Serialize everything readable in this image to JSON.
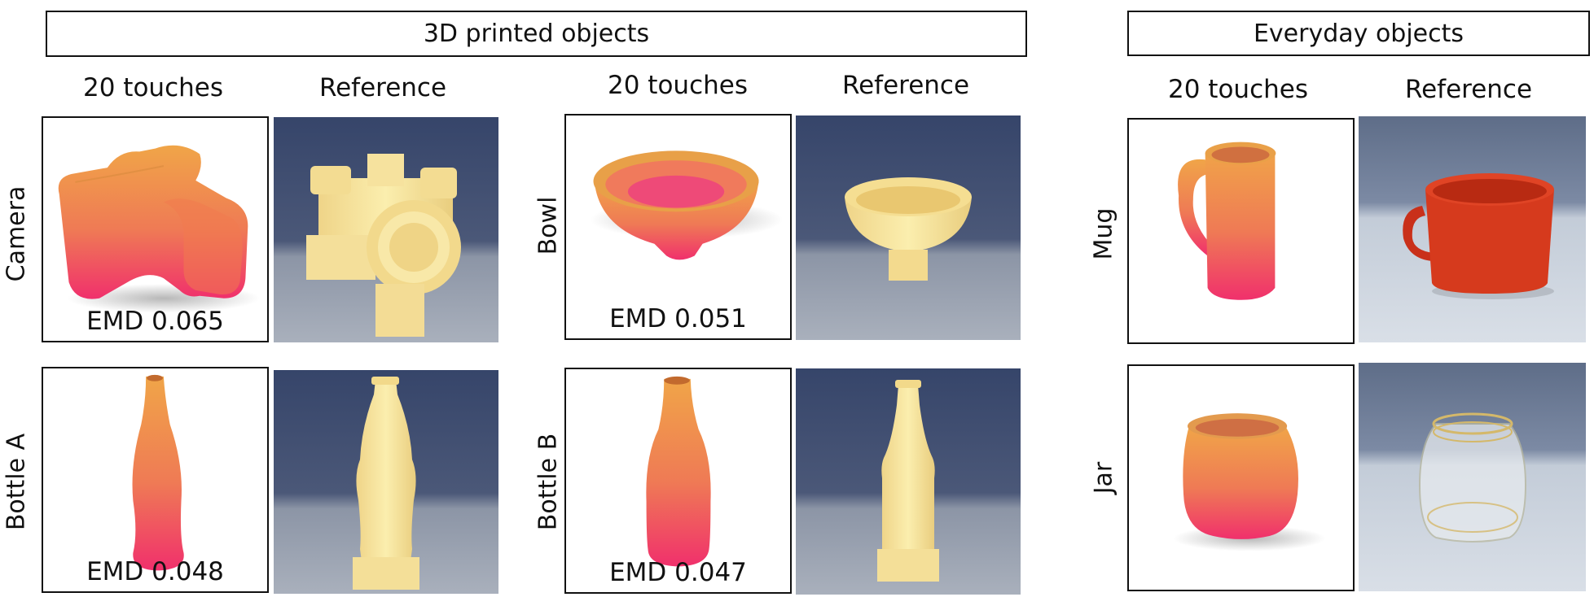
{
  "groups": {
    "printed": {
      "title": "3D printed objects"
    },
    "everyday": {
      "title": "Everyday objects"
    }
  },
  "columns": {
    "touches": "20 touches",
    "reference": "Reference"
  },
  "objects": [
    {
      "label": "Camera",
      "emd": "EMD 0.065"
    },
    {
      "label": "Bottle A",
      "emd": "EMD 0.048"
    },
    {
      "label": "Bowl",
      "emd": "EMD 0.051"
    },
    {
      "label": "Bottle B",
      "emd": "EMD 0.047"
    },
    {
      "label": "Mug",
      "emd": ""
    },
    {
      "label": "Jar",
      "emd": ""
    }
  ],
  "colors": {
    "gradient_top": "#f0a040",
    "gradient_bottom": "#f0306a",
    "printed_yellow": "#f7e49a",
    "backdrop_blue": "#3f4e6a",
    "table_grey": "#8f97a7",
    "mug_red": "#d9371a"
  }
}
